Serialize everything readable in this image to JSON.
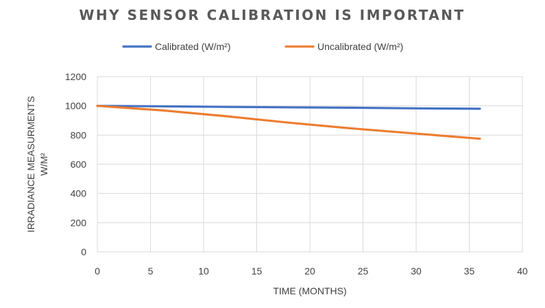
{
  "chart_data": {
    "type": "line",
    "title": "WHY SENSOR CALIBRATION IS IMPORTANT",
    "xlabel": "TIME (MONTHS)",
    "ylabel_lines": [
      "IRRADIANCE MEASURMENTS",
      "W/M²"
    ],
    "xlim": [
      0,
      40
    ],
    "ylim": [
      0,
      1200
    ],
    "xticks": [
      0,
      5,
      10,
      15,
      20,
      25,
      30,
      35,
      40
    ],
    "yticks": [
      0,
      200,
      400,
      600,
      800,
      1000,
      1200
    ],
    "grid": true,
    "legend_position": "top",
    "series": [
      {
        "name": "Calibrated (W/m²)",
        "color": "#4472C4",
        "x": [
          0,
          6,
          12,
          18,
          24,
          30,
          36
        ],
        "y": [
          1000,
          997,
          993,
          990,
          987,
          983,
          980
        ]
      },
      {
        "name": "Uncalibrated (W/m²)",
        "color": "#ED7D31",
        "x": [
          0,
          6,
          12,
          18,
          24,
          30,
          36
        ],
        "y": [
          1000,
          970,
          930,
          885,
          845,
          810,
          775
        ]
      }
    ]
  }
}
